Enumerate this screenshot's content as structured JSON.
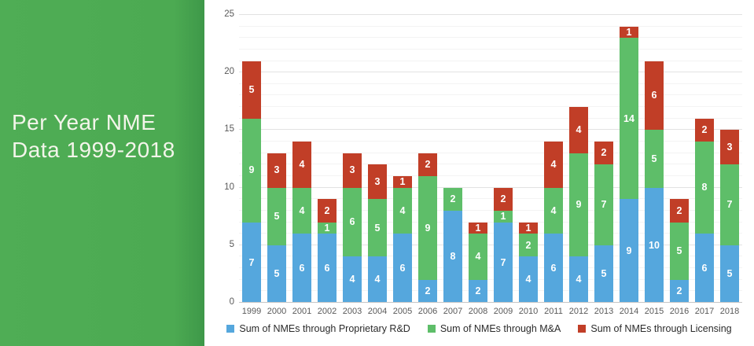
{
  "panel": {
    "title_line1": "Per Year NME",
    "title_line2": "Data 1999-2018",
    "bg_color": "#4FAD55",
    "bg_edge_color": "#3E9849",
    "title_color": "#F3F5EA"
  },
  "chart_data": {
    "type": "bar",
    "stacked": true,
    "title": "Per Year NME Data 1999-2018",
    "categories": [
      "1999",
      "2000",
      "2001",
      "2002",
      "2003",
      "2004",
      "2005",
      "2006",
      "2007",
      "2008",
      "2009",
      "2010",
      "2011",
      "2012",
      "2013",
      "2014",
      "2015",
      "2016",
      "2017",
      "2018"
    ],
    "series": [
      {
        "name": "Sum of NMEs through Proprietary R&D",
        "color": "#55A7DD",
        "values": [
          7,
          5,
          6,
          6,
          4,
          4,
          6,
          2,
          8,
          2,
          7,
          4,
          6,
          4,
          5,
          9,
          10,
          2,
          6,
          5
        ]
      },
      {
        "name": "Sum of NMEs through M&A",
        "color": "#5EBE69",
        "values": [
          9,
          5,
          4,
          1,
          6,
          5,
          4,
          9,
          2,
          4,
          1,
          2,
          4,
          9,
          7,
          14,
          5,
          5,
          8,
          7
        ]
      },
      {
        "name": "Sum of NMEs through Licensing",
        "color": "#C13E27",
        "values": [
          5,
          3,
          4,
          2,
          3,
          3,
          1,
          2,
          0,
          1,
          2,
          1,
          4,
          4,
          2,
          1,
          6,
          2,
          2,
          3
        ]
      }
    ],
    "totals": [
      21,
      13,
      14,
      9,
      13,
      12,
      11,
      13,
      10,
      7,
      10,
      7,
      14,
      17,
      14,
      24,
      21,
      9,
      16,
      15
    ],
    "xlabel": "",
    "ylabel": "",
    "ylim": [
      0,
      25
    ],
    "yticks": [
      0,
      5,
      10,
      15,
      20,
      25
    ],
    "grid": {
      "minor_step": 1,
      "major_step": 5,
      "orientation": "horizontal"
    },
    "legend_position": "bottom",
    "bar_label_color": "#FFFFFF",
    "axis_text_color": "#595959"
  }
}
